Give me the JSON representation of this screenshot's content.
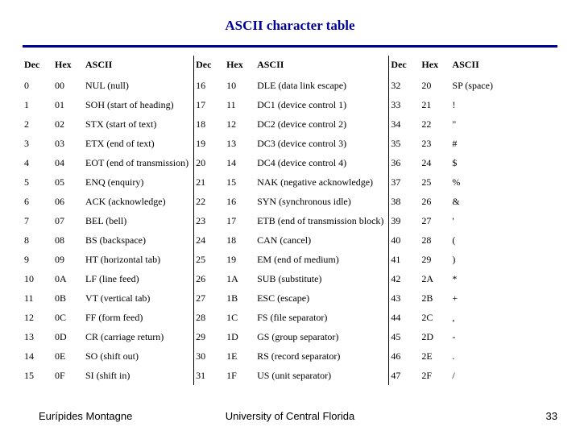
{
  "title": "ASCII character table",
  "headers": {
    "dec": "Dec",
    "hex": "Hex",
    "ascii": "ASCII"
  },
  "block1": [
    {
      "dec": "0",
      "hex": "00",
      "ascii": "NUL (null)"
    },
    {
      "dec": "1",
      "hex": "01",
      "ascii": "SOH (start of heading)"
    },
    {
      "dec": "2",
      "hex": "02",
      "ascii": "STX (start of text)"
    },
    {
      "dec": "3",
      "hex": "03",
      "ascii": "ETX (end of text)"
    },
    {
      "dec": "4",
      "hex": "04",
      "ascii": "EOT (end of transmission)"
    },
    {
      "dec": "5",
      "hex": "05",
      "ascii": "ENQ (enquiry)"
    },
    {
      "dec": "6",
      "hex": "06",
      "ascii": "ACK (acknowledge)"
    },
    {
      "dec": "7",
      "hex": "07",
      "ascii": "BEL (bell)"
    },
    {
      "dec": "8",
      "hex": "08",
      "ascii": "BS (backspace)"
    },
    {
      "dec": "9",
      "hex": "09",
      "ascii": "HT (horizontal tab)"
    },
    {
      "dec": "10",
      "hex": "0A",
      "ascii": "LF (line feed)"
    },
    {
      "dec": "11",
      "hex": "0B",
      "ascii": "VT (vertical tab)"
    },
    {
      "dec": "12",
      "hex": "0C",
      "ascii": "FF (form feed)"
    },
    {
      "dec": "13",
      "hex": "0D",
      "ascii": "CR (carriage return)"
    },
    {
      "dec": "14",
      "hex": "0E",
      "ascii": "SO (shift out)"
    },
    {
      "dec": "15",
      "hex": "0F",
      "ascii": "SI (shift in)"
    }
  ],
  "block2": [
    {
      "dec": "16",
      "hex": "10",
      "ascii": "DLE (data link escape)"
    },
    {
      "dec": "17",
      "hex": "11",
      "ascii": "DC1 (device control 1)"
    },
    {
      "dec": "18",
      "hex": "12",
      "ascii": "DC2 (device control 2)"
    },
    {
      "dec": "19",
      "hex": "13",
      "ascii": "DC3 (device control 3)"
    },
    {
      "dec": "20",
      "hex": "14",
      "ascii": "DC4 (device control 4)"
    },
    {
      "dec": "21",
      "hex": "15",
      "ascii": "NAK (negative acknowledge)"
    },
    {
      "dec": "22",
      "hex": "16",
      "ascii": "SYN (synchronous idle)"
    },
    {
      "dec": "23",
      "hex": "17",
      "ascii": "ETB (end of transmission block)"
    },
    {
      "dec": "24",
      "hex": "18",
      "ascii": "CAN (cancel)"
    },
    {
      "dec": "25",
      "hex": "19",
      "ascii": "EM (end of medium)"
    },
    {
      "dec": "26",
      "hex": "1A",
      "ascii": "SUB (substitute)"
    },
    {
      "dec": "27",
      "hex": "1B",
      "ascii": "ESC (escape)"
    },
    {
      "dec": "28",
      "hex": "1C",
      "ascii": "FS (file separator)"
    },
    {
      "dec": "29",
      "hex": "1D",
      "ascii": "GS (group separator)"
    },
    {
      "dec": "30",
      "hex": "1E",
      "ascii": "RS (record separator)"
    },
    {
      "dec": "31",
      "hex": "1F",
      "ascii": "US (unit separator)"
    }
  ],
  "block3": [
    {
      "dec": "32",
      "hex": "20",
      "ascii": "SP (space)"
    },
    {
      "dec": "33",
      "hex": "21",
      "ascii": "!"
    },
    {
      "dec": "34",
      "hex": "22",
      "ascii": "\""
    },
    {
      "dec": "35",
      "hex": "23",
      "ascii": "#"
    },
    {
      "dec": "36",
      "hex": "24",
      "ascii": "$"
    },
    {
      "dec": "37",
      "hex": "25",
      "ascii": "%"
    },
    {
      "dec": "38",
      "hex": "26",
      "ascii": "&"
    },
    {
      "dec": "39",
      "hex": "27",
      "ascii": "'"
    },
    {
      "dec": "40",
      "hex": "28",
      "ascii": "("
    },
    {
      "dec": "41",
      "hex": "29",
      "ascii": ")"
    },
    {
      "dec": "42",
      "hex": "2A",
      "ascii": "*"
    },
    {
      "dec": "43",
      "hex": "2B",
      "ascii": "+"
    },
    {
      "dec": "44",
      "hex": "2C",
      "ascii": ","
    },
    {
      "dec": "45",
      "hex": "2D",
      "ascii": "-"
    },
    {
      "dec": "46",
      "hex": "2E",
      "ascii": "."
    },
    {
      "dec": "47",
      "hex": "2F",
      "ascii": "/"
    }
  ],
  "footer": {
    "author": "Eurípides Montagne",
    "university": "University of Central Florida",
    "page": "33"
  },
  "colors": {
    "title": "#000099",
    "rule": "#000099",
    "text": "#000000",
    "background": "#ffffff"
  }
}
